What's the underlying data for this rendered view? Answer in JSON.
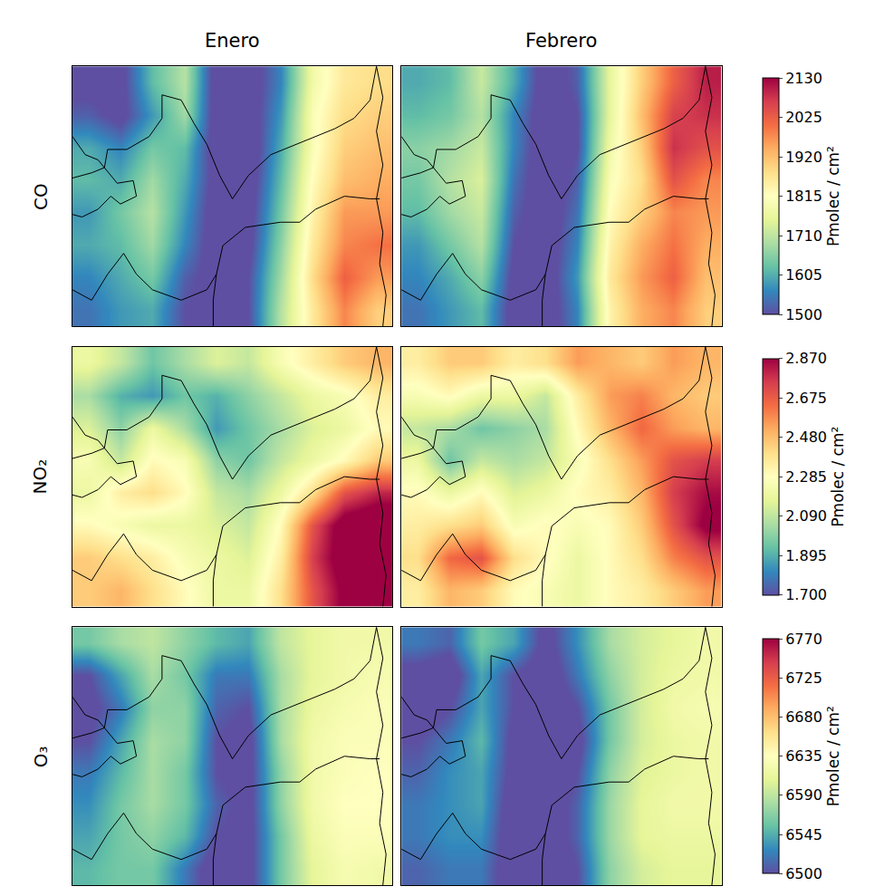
{
  "chart_data": {
    "type": "heatmap",
    "tick_labels": false,
    "columns": [
      "Enero",
      "Febrero"
    ],
    "rows": [
      {
        "name": "CO",
        "colorbar": {
          "title": "Pmolec / cm²",
          "range": [
            1500,
            2130
          ],
          "ticks": [
            1500,
            1605,
            1710,
            1815,
            1920,
            2025,
            2130
          ]
        },
        "cells": [
          [
            [
              1480,
              1480,
              1620,
              1700,
              1460,
              1460,
              1560,
              1780,
              1860,
              1880
            ],
            [
              1520,
              1480,
              1580,
              1680,
              1460,
              1460,
              1580,
              1800,
              1880,
              1900
            ],
            [
              1600,
              1560,
              1640,
              1620,
              1460,
              1450,
              1600,
              1800,
              1900,
              1920
            ],
            [
              1620,
              1600,
              1680,
              1600,
              1470,
              1460,
              1620,
              1820,
              1920,
              1940
            ],
            [
              1580,
              1640,
              1700,
              1580,
              1460,
              1470,
              1640,
              1840,
              1960,
              1960
            ],
            [
              1600,
              1620,
              1680,
              1560,
              1460,
              1480,
              1660,
              1860,
              1980,
              2000
            ],
            [
              1560,
              1600,
              1640,
              1520,
              1470,
              1500,
              1680,
              1880,
              2020,
              1960
            ],
            [
              1540,
              1580,
              1600,
              1500,
              1480,
              1500,
              1700,
              1860,
              1980,
              1900
            ]
          ],
          [
            [
              1600,
              1620,
              1720,
              1600,
              1460,
              1520,
              1760,
              1900,
              2020,
              2100
            ],
            [
              1620,
              1640,
              1700,
              1560,
              1460,
              1500,
              1760,
              1920,
              2060,
              2080
            ],
            [
              1660,
              1680,
              1720,
              1560,
              1450,
              1500,
              1780,
              1900,
              2080,
              2040
            ],
            [
              1640,
              1700,
              1740,
              1540,
              1450,
              1520,
              1800,
              1880,
              2040,
              1980
            ],
            [
              1620,
              1680,
              1720,
              1520,
              1460,
              1540,
              1820,
              1900,
              1980,
              1960
            ],
            [
              1580,
              1640,
              1700,
              1500,
              1460,
              1560,
              1840,
              1940,
              2000,
              1940
            ],
            [
              1560,
              1600,
              1660,
              1480,
              1460,
              1580,
              1860,
              1960,
              2020,
              1920
            ],
            [
              1540,
              1580,
              1620,
              1470,
              1460,
              1560,
              1840,
              1940,
              1980,
              1900
            ]
          ]
        ]
      },
      {
        "name": "NO₂",
        "colorbar": {
          "title": "Pmolec / cm²",
          "range": [
            1.7,
            2.87
          ],
          "ticks": [
            {
              "value": 1.7,
              "label": "1.700"
            },
            {
              "value": 1.895,
              "label": "1.895"
            },
            {
              "value": 2.09,
              "label": "2.090"
            },
            {
              "value": 2.285,
              "label": "2.285"
            },
            {
              "value": 2.48,
              "label": "2.480"
            },
            {
              "value": 2.675,
              "label": "2.675"
            },
            {
              "value": 2.87,
              "label": "2.870"
            }
          ]
        },
        "cells": [
          [
            [
              2.2,
              2.1,
              1.95,
              2.05,
              2.15,
              2.1,
              2.25,
              2.35,
              2.45,
              2.5
            ],
            [
              2.05,
              1.9,
              1.85,
              1.95,
              1.9,
              2.0,
              2.1,
              2.2,
              2.25,
              2.35
            ],
            [
              2.15,
              2.0,
              2.2,
              2.05,
              1.85,
              1.95,
              2.05,
              2.15,
              2.2,
              2.3
            ],
            [
              2.25,
              2.1,
              2.3,
              2.25,
              2.0,
              1.95,
              2.1,
              2.2,
              2.3,
              2.45
            ],
            [
              2.2,
              2.35,
              2.4,
              2.3,
              2.1,
              2.05,
              2.2,
              2.4,
              2.7,
              2.8
            ],
            [
              2.3,
              2.25,
              2.2,
              2.2,
              2.15,
              2.1,
              2.3,
              2.7,
              2.95,
              3.0
            ],
            [
              2.45,
              2.4,
              2.35,
              2.25,
              2.2,
              2.15,
              2.35,
              2.75,
              2.95,
              3.0
            ],
            [
              2.45,
              2.5,
              2.4,
              2.3,
              2.2,
              2.2,
              2.4,
              2.7,
              2.9,
              3.0
            ]
          ],
          [
            [
              2.35,
              2.45,
              2.45,
              2.35,
              2.4,
              2.55,
              2.5,
              2.45,
              2.55,
              2.5
            ],
            [
              2.25,
              2.3,
              2.2,
              2.2,
              2.1,
              2.35,
              2.55,
              2.6,
              2.5,
              2.45
            ],
            [
              2.1,
              2.05,
              1.95,
              2.0,
              2.05,
              2.3,
              2.5,
              2.65,
              2.55,
              2.5
            ],
            [
              2.2,
              1.95,
              2.1,
              2.05,
              2.1,
              2.25,
              2.4,
              2.55,
              2.7,
              2.75
            ],
            [
              2.3,
              2.2,
              2.3,
              2.15,
              2.2,
              2.3,
              2.35,
              2.5,
              2.75,
              2.85
            ],
            [
              2.35,
              2.4,
              2.45,
              2.25,
              2.3,
              2.25,
              2.3,
              2.45,
              2.7,
              2.9
            ],
            [
              2.4,
              2.65,
              2.7,
              2.4,
              2.3,
              2.2,
              2.3,
              2.4,
              2.6,
              2.7
            ],
            [
              2.35,
              2.5,
              2.45,
              2.3,
              2.25,
              2.2,
              2.3,
              2.35,
              2.45,
              2.55
            ]
          ]
        ]
      },
      {
        "name": "O₃",
        "colorbar": {
          "title": "Pmolec / cm²",
          "range": [
            6500,
            6770
          ],
          "ticks": [
            6500,
            6545,
            6590,
            6635,
            6680,
            6725,
            6770
          ]
        },
        "cells": [
          [
            [
              6560,
              6580,
              6590,
              6570,
              6550,
              6540,
              6590,
              6610,
              6620,
              6620
            ],
            [
              6500,
              6540,
              6580,
              6560,
              6520,
              6520,
              6580,
              6610,
              6620,
              6625
            ],
            [
              6490,
              6520,
              6570,
              6570,
              6510,
              6500,
              6580,
              6615,
              6625,
              6630
            ],
            [
              6500,
              6540,
              6580,
              6570,
              6500,
              6490,
              6580,
              6620,
              6630,
              6630
            ],
            [
              6520,
              6550,
              6580,
              6560,
              6500,
              6490,
              6570,
              6620,
              6630,
              6635
            ],
            [
              6530,
              6560,
              6580,
              6560,
              6510,
              6490,
              6570,
              6620,
              6635,
              6635
            ],
            [
              6540,
              6560,
              6570,
              6550,
              6500,
              6490,
              6560,
              6615,
              6630,
              6630
            ],
            [
              6550,
              6560,
              6560,
              6520,
              6480,
              6490,
              6560,
              6610,
              6625,
              6620
            ]
          ],
          [
            [
              6520,
              6510,
              6560,
              6540,
              6490,
              6530,
              6580,
              6600,
              6610,
              6620
            ],
            [
              6490,
              6480,
              6540,
              6500,
              6480,
              6520,
              6570,
              6600,
              6615,
              6620
            ],
            [
              6480,
              6500,
              6540,
              6500,
              6480,
              6500,
              6560,
              6600,
              6620,
              6625
            ],
            [
              6500,
              6520,
              6550,
              6490,
              6480,
              6490,
              6560,
              6600,
              6615,
              6620
            ],
            [
              6510,
              6530,
              6540,
              6490,
              6480,
              6500,
              6570,
              6605,
              6615,
              6620
            ],
            [
              6520,
              6530,
              6540,
              6480,
              6480,
              6510,
              6575,
              6610,
              6620,
              6620
            ],
            [
              6520,
              6530,
              6530,
              6480,
              6480,
              6510,
              6575,
              6610,
              6615,
              6615
            ],
            [
              6510,
              6520,
              6520,
              6480,
              6480,
              6500,
              6570,
              6600,
              6610,
              6610
            ]
          ]
        ]
      }
    ]
  }
}
